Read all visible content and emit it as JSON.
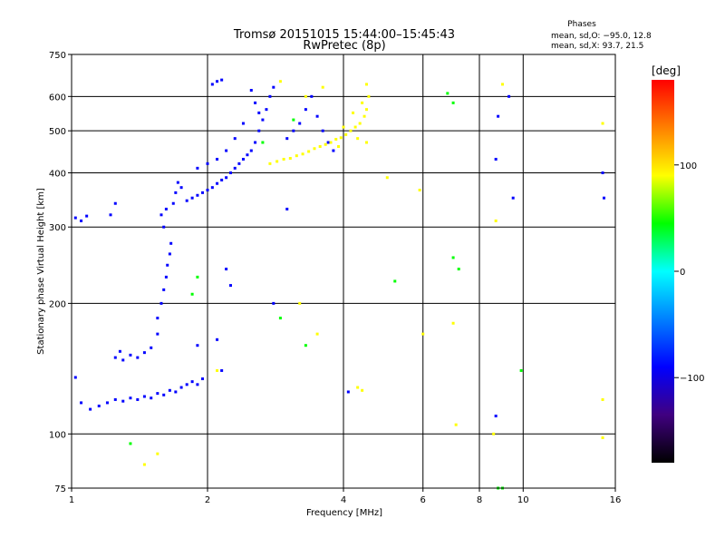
{
  "chart_data": {
    "type": "scatter",
    "title": "Tromsø 20151015 15:44:00–15:45:43",
    "subtitle": "RwPretec (8p)",
    "xlabel": "Frequency [MHz]",
    "ylabel": "Stationary phase Virtual Height [km]",
    "x_scale": "log",
    "y_scale": "log",
    "xlim": [
      1,
      16
    ],
    "ylim": [
      75,
      750
    ],
    "x_ticks": [
      1,
      2,
      4,
      6,
      8,
      10,
      16
    ],
    "x_tick_labels": [
      "1",
      "2",
      "4",
      "6",
      "8",
      "10",
      "16"
    ],
    "y_ticks": [
      75,
      100,
      200,
      300,
      400,
      500,
      600,
      750
    ],
    "y_tick_labels": [
      "75",
      "100",
      "200",
      "300",
      "400",
      "500",
      "600",
      "750"
    ],
    "grid": true,
    "stats": {
      "heading": "Phases",
      "line1": "mean, sd,O: −95.0, 12.8",
      "line2": "mean, sd,X:  93.7, 21.5"
    },
    "colorbar": {
      "label": "[deg]",
      "range": [
        -180,
        180
      ],
      "ticks": [
        100,
        0,
        -100
      ],
      "tick_labels": [
        "100",
        "0",
        "−100"
      ],
      "colors": [
        "#ff0000",
        "#ff8000",
        "#ffff00",
        "#00ff00",
        "#00ffff",
        "#0080ff",
        "#0000ff",
        "#400080",
        "#000000"
      ]
    },
    "series": [
      {
        "values": [
          {
            "f": 1.02,
            "h": 315
          },
          {
            "f": 1.05,
            "h": 310
          },
          {
            "f": 1.08,
            "h": 318
          },
          {
            "f": 1.22,
            "h": 320
          },
          {
            "f": 1.25,
            "h": 340
          },
          {
            "f": 1.02,
            "h": 135
          },
          {
            "f": 1.05,
            "h": 118
          },
          {
            "f": 1.1,
            "h": 114
          },
          {
            "f": 1.15,
            "h": 116
          },
          {
            "f": 1.2,
            "h": 118
          },
          {
            "f": 1.25,
            "h": 120
          },
          {
            "f": 1.3,
            "h": 119
          },
          {
            "f": 1.35,
            "h": 121
          },
          {
            "f": 1.4,
            "h": 120
          },
          {
            "f": 1.45,
            "h": 122
          },
          {
            "f": 1.5,
            "h": 121
          },
          {
            "f": 1.55,
            "h": 124
          },
          {
            "f": 1.6,
            "h": 123
          },
          {
            "f": 1.65,
            "h": 126
          },
          {
            "f": 1.7,
            "h": 125
          },
          {
            "f": 1.75,
            "h": 128
          },
          {
            "f": 1.8,
            "h": 130
          },
          {
            "f": 1.85,
            "h": 132
          },
          {
            "f": 1.9,
            "h": 130
          },
          {
            "f": 1.95,
            "h": 134
          },
          {
            "f": 1.25,
            "h": 150
          },
          {
            "f": 1.28,
            "h": 155
          },
          {
            "f": 1.3,
            "h": 148
          },
          {
            "f": 1.35,
            "h": 152
          },
          {
            "f": 1.4,
            "h": 150
          },
          {
            "f": 1.45,
            "h": 154
          },
          {
            "f": 1.5,
            "h": 158
          },
          {
            "f": 1.55,
            "h": 170
          },
          {
            "f": 1.55,
            "h": 185
          },
          {
            "f": 1.58,
            "h": 200
          },
          {
            "f": 1.6,
            "h": 215
          },
          {
            "f": 1.62,
            "h": 230
          },
          {
            "f": 1.63,
            "h": 245
          },
          {
            "f": 1.65,
            "h": 260
          },
          {
            "f": 1.66,
            "h": 275
          },
          {
            "f": 1.6,
            "h": 300
          },
          {
            "f": 1.58,
            "h": 320
          },
          {
            "f": 1.62,
            "h": 330
          },
          {
            "f": 1.68,
            "h": 340
          },
          {
            "f": 1.7,
            "h": 360
          },
          {
            "f": 1.72,
            "h": 380
          },
          {
            "f": 1.75,
            "h": 370
          },
          {
            "f": 1.8,
            "h": 345
          },
          {
            "f": 1.85,
            "h": 350
          },
          {
            "f": 1.9,
            "h": 355
          },
          {
            "f": 1.95,
            "h": 360
          },
          {
            "f": 2.0,
            "h": 365
          },
          {
            "f": 2.05,
            "h": 370
          },
          {
            "f": 2.1,
            "h": 378
          },
          {
            "f": 2.15,
            "h": 385
          },
          {
            "f": 2.2,
            "h": 390
          },
          {
            "f": 2.25,
            "h": 400
          },
          {
            "f": 2.3,
            "h": 410
          },
          {
            "f": 2.35,
            "h": 420
          },
          {
            "f": 2.4,
            "h": 430
          },
          {
            "f": 2.45,
            "h": 440
          },
          {
            "f": 2.5,
            "h": 450
          },
          {
            "f": 2.55,
            "h": 470
          },
          {
            "f": 2.6,
            "h": 500
          },
          {
            "f": 2.65,
            "h": 530
          },
          {
            "f": 2.7,
            "h": 560
          },
          {
            "f": 2.75,
            "h": 600
          },
          {
            "f": 2.8,
            "h": 630
          },
          {
            "f": 2.5,
            "h": 620
          },
          {
            "f": 2.55,
            "h": 580
          },
          {
            "f": 2.6,
            "h": 550
          },
          {
            "f": 2.4,
            "h": 520
          },
          {
            "f": 2.3,
            "h": 480
          },
          {
            "f": 2.2,
            "h": 450
          },
          {
            "f": 2.1,
            "h": 430
          },
          {
            "f": 2.0,
            "h": 420
          },
          {
            "f": 1.9,
            "h": 410
          },
          {
            "f": 2.05,
            "h": 640
          },
          {
            "f": 2.1,
            "h": 650
          },
          {
            "f": 2.15,
            "h": 655
          },
          {
            "f": 3.0,
            "h": 480
          },
          {
            "f": 3.1,
            "h": 500
          },
          {
            "f": 3.2,
            "h": 520
          },
          {
            "f": 3.3,
            "h": 560
          },
          {
            "f": 3.4,
            "h": 600
          },
          {
            "f": 3.5,
            "h": 540
          },
          {
            "f": 3.6,
            "h": 500
          },
          {
            "f": 3.7,
            "h": 470
          },
          {
            "f": 3.8,
            "h": 450
          },
          {
            "f": 3.0,
            "h": 330
          },
          {
            "f": 2.8,
            "h": 200
          },
          {
            "f": 2.2,
            "h": 240
          },
          {
            "f": 2.25,
            "h": 220
          },
          {
            "f": 1.9,
            "h": 160
          },
          {
            "f": 2.1,
            "h": 165
          },
          {
            "f": 2.15,
            "h": 140
          },
          {
            "f": 4.1,
            "h": 125
          },
          {
            "f": 8.7,
            "h": 110
          },
          {
            "f": 9.3,
            "h": 600
          },
          {
            "f": 8.8,
            "h": 540
          },
          {
            "f": 8.7,
            "h": 430
          },
          {
            "f": 9.5,
            "h": 350
          },
          {
            "f": 15.0,
            "h": 400
          },
          {
            "f": 15.1,
            "h": 350
          }
        ]
      },
      {
        "values": [
          {
            "f": 2.75,
            "h": 420
          },
          {
            "f": 2.85,
            "h": 425
          },
          {
            "f": 2.95,
            "h": 430
          },
          {
            "f": 3.05,
            "h": 432
          },
          {
            "f": 3.15,
            "h": 438
          },
          {
            "f": 3.25,
            "h": 442
          },
          {
            "f": 3.35,
            "h": 448
          },
          {
            "f": 3.45,
            "h": 455
          },
          {
            "f": 3.55,
            "h": 460
          },
          {
            "f": 3.65,
            "h": 465
          },
          {
            "f": 3.75,
            "h": 470
          },
          {
            "f": 3.85,
            "h": 478
          },
          {
            "f": 3.95,
            "h": 482
          },
          {
            "f": 4.05,
            "h": 490
          },
          {
            "f": 4.15,
            "h": 500
          },
          {
            "f": 4.25,
            "h": 510
          },
          {
            "f": 4.35,
            "h": 520
          },
          {
            "f": 4.45,
            "h": 540
          },
          {
            "f": 4.5,
            "h": 560
          },
          {
            "f": 4.55,
            "h": 600
          },
          {
            "f": 4.4,
            "h": 580
          },
          {
            "f": 4.2,
            "h": 550
          },
          {
            "f": 4.0,
            "h": 510
          },
          {
            "f": 4.3,
            "h": 480
          },
          {
            "f": 4.5,
            "h": 470
          },
          {
            "f": 3.9,
            "h": 460
          },
          {
            "f": 3.3,
            "h": 600
          },
          {
            "f": 3.6,
            "h": 630
          },
          {
            "f": 4.5,
            "h": 640
          },
          {
            "f": 2.9,
            "h": 650
          },
          {
            "f": 3.2,
            "h": 200
          },
          {
            "f": 3.5,
            "h": 170
          },
          {
            "f": 2.1,
            "h": 140
          },
          {
            "f": 1.55,
            "h": 90
          },
          {
            "f": 1.45,
            "h": 85
          },
          {
            "f": 5.0,
            "h": 390
          },
          {
            "f": 5.9,
            "h": 365
          },
          {
            "f": 6.0,
            "h": 170
          },
          {
            "f": 7.0,
            "h": 180
          },
          {
            "f": 7.1,
            "h": 105
          },
          {
            "f": 8.7,
            "h": 310
          },
          {
            "f": 9.0,
            "h": 640
          },
          {
            "f": 8.6,
            "h": 100
          },
          {
            "f": 15.0,
            "h": 520
          },
          {
            "f": 15.0,
            "h": 98
          },
          {
            "f": 15.0,
            "h": 120
          },
          {
            "f": 4.3,
            "h": 128
          },
          {
            "f": 4.4,
            "h": 126
          }
        ]
      },
      {
        "values": [
          {
            "f": 1.9,
            "h": 230
          },
          {
            "f": 1.85,
            "h": 210
          },
          {
            "f": 2.9,
            "h": 185
          },
          {
            "f": 3.3,
            "h": 160
          },
          {
            "f": 5.2,
            "h": 225
          },
          {
            "f": 7.0,
            "h": 255
          },
          {
            "f": 7.2,
            "h": 240
          },
          {
            "f": 6.8,
            "h": 610
          },
          {
            "f": 7.0,
            "h": 580
          },
          {
            "f": 9.9,
            "h": 140
          },
          {
            "f": 2.65,
            "h": 470
          },
          {
            "f": 3.1,
            "h": 530
          },
          {
            "f": 1.35,
            "h": 95
          },
          {
            "f": 8.8,
            "h": 75
          },
          {
            "f": 9.0,
            "h": 75
          }
        ]
      }
    ]
  }
}
